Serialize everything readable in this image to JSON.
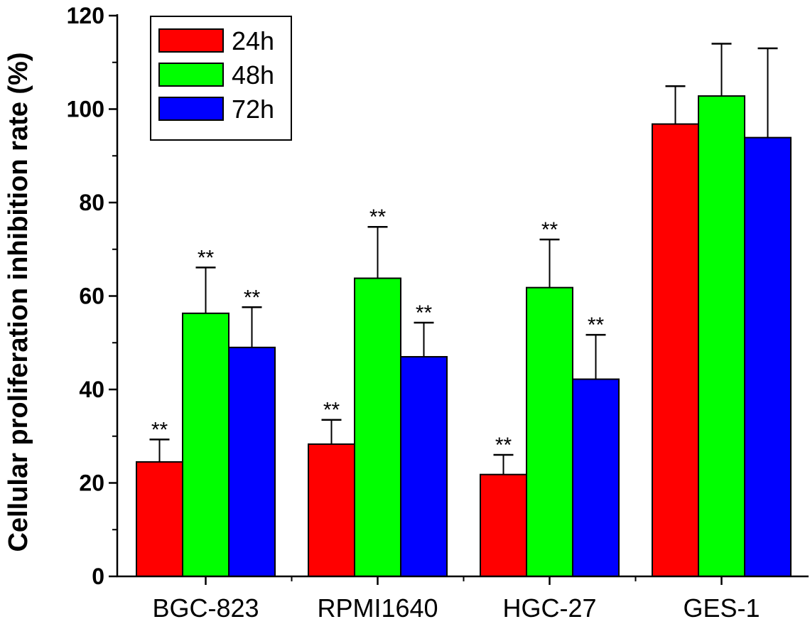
{
  "chart_data": {
    "type": "bar",
    "title": "",
    "xlabel": "",
    "ylabel": "Cellular proliferation inhibition rate (%)",
    "ylim": [
      0,
      120
    ],
    "yticks": [
      "0",
      "20",
      "40",
      "60",
      "80",
      "100",
      "120"
    ],
    "categories": [
      "BGC-823",
      "RPMI1640",
      "HGC-27",
      "GES-1"
    ],
    "series": [
      {
        "name": "24h",
        "color": "#ff0000",
        "values": [
          24.5,
          28.3,
          21.8,
          96.8
        ],
        "errors": [
          4.8,
          5.2,
          4.2,
          8.1
        ],
        "significance": [
          "**",
          "**",
          "**",
          ""
        ]
      },
      {
        "name": "48h",
        "color": "#00ff00",
        "values": [
          56.3,
          63.8,
          61.8,
          102.8
        ],
        "errors": [
          9.8,
          11.0,
          10.3,
          11.2
        ],
        "significance": [
          "**",
          "**",
          "**",
          ""
        ]
      },
      {
        "name": "72h",
        "color": "#0000ff",
        "values": [
          49.0,
          47.0,
          42.2,
          93.9
        ],
        "errors": [
          8.6,
          7.3,
          9.5,
          19.1
        ],
        "significance": [
          "**",
          "**",
          "**",
          ""
        ]
      }
    ],
    "legend": "top-left"
  }
}
